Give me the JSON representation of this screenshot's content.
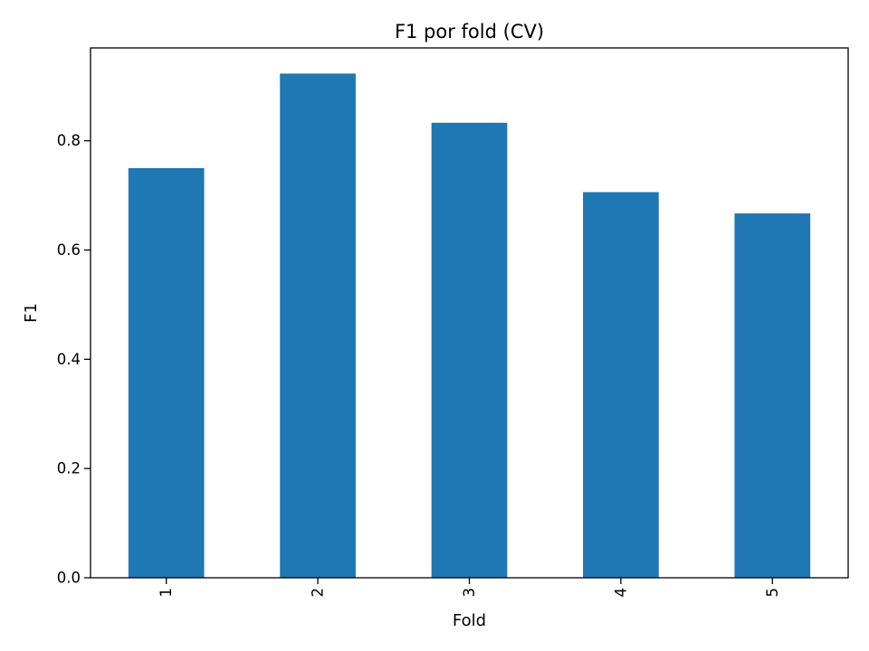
{
  "chart_data": {
    "type": "bar",
    "title": "F1 por fold (CV)",
    "xlabel": "Fold",
    "ylabel": "F1",
    "categories": [
      "1",
      "2",
      "3",
      "4",
      "5"
    ],
    "values": [
      0.75,
      0.923,
      0.833,
      0.706,
      0.667
    ],
    "ylim": [
      0,
      0.97
    ],
    "yticks": [
      0.0,
      0.2,
      0.4,
      0.6,
      0.8
    ],
    "ytick_labels": [
      "0.0",
      "0.2",
      "0.4",
      "0.6",
      "0.8"
    ],
    "xtick_rotation": "vertical",
    "grid": false,
    "legend": "none",
    "bar_color": "#1f77b4"
  }
}
